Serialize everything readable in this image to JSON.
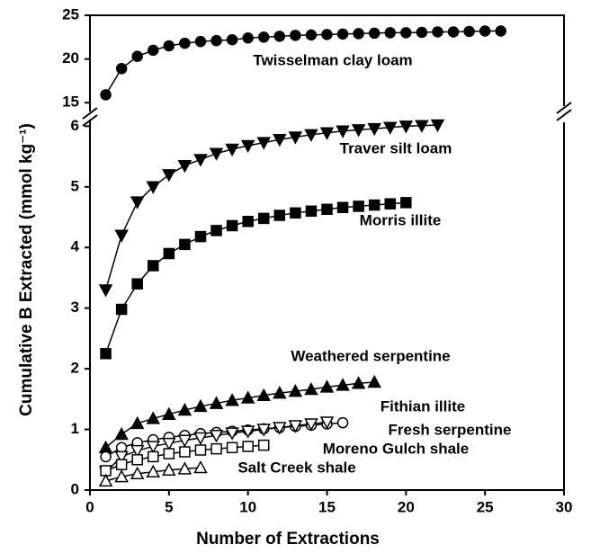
{
  "chart_data": [
    {
      "type": "line",
      "xlim": [
        0,
        30
      ],
      "ylim": [
        14.4,
        25
      ],
      "yticks": [
        15,
        20,
        25
      ],
      "series": [
        {
          "name": "Twisselman clay loam",
          "color": "#000000",
          "marker": "circle",
          "filled": true,
          "x": [
            1,
            2,
            3,
            4,
            5,
            6,
            7,
            8,
            9,
            10,
            11,
            12,
            13,
            14,
            15,
            16,
            17,
            18,
            19,
            20,
            21,
            22,
            23,
            24,
            25,
            26
          ],
          "values": [
            15.9,
            18.9,
            20.3,
            21.0,
            21.5,
            21.8,
            22.0,
            22.1,
            22.2,
            22.4,
            22.5,
            22.6,
            22.7,
            22.75,
            22.8,
            22.85,
            22.9,
            22.95,
            23.0,
            23.0,
            23.05,
            23.1,
            23.1,
            23.15,
            23.2,
            23.2
          ]
        }
      ]
    },
    {
      "type": "line",
      "xlim": [
        0,
        30
      ],
      "xticks": [
        0,
        5,
        10,
        15,
        20,
        25,
        30
      ],
      "ylim": [
        0,
        6.05
      ],
      "yticks": [
        0,
        1,
        2,
        3,
        4,
        5,
        6
      ],
      "x_label": "Number of Extractions",
      "y_label": "Cumulative B Extracted (mmol kg⁻¹)",
      "series": [
        {
          "name": "Traver silt loam",
          "color": "#000000",
          "marker": "triangle-down",
          "filled": true,
          "x": [
            1,
            2,
            3,
            4,
            5,
            6,
            7,
            8,
            9,
            10,
            11,
            12,
            13,
            14,
            15,
            16,
            17,
            18,
            19,
            20,
            21,
            22
          ],
          "values": [
            3.3,
            4.2,
            4.75,
            5.0,
            5.2,
            5.35,
            5.45,
            5.55,
            5.62,
            5.68,
            5.73,
            5.78,
            5.82,
            5.86,
            5.89,
            5.92,
            5.94,
            5.96,
            5.98,
            6.0,
            6.01,
            6.02
          ]
        },
        {
          "name": "Morris illite",
          "color": "#000000",
          "marker": "square",
          "filled": true,
          "x": [
            1,
            2,
            3,
            4,
            5,
            6,
            7,
            8,
            9,
            10,
            11,
            12,
            13,
            14,
            15,
            16,
            17,
            18,
            19,
            20
          ],
          "values": [
            2.25,
            2.98,
            3.4,
            3.7,
            3.9,
            4.05,
            4.18,
            4.28,
            4.36,
            4.43,
            4.48,
            4.53,
            4.57,
            4.6,
            4.63,
            4.66,
            4.68,
            4.7,
            4.72,
            4.74
          ]
        },
        {
          "name": "Weathered serpentine",
          "color": "#000000",
          "marker": "triangle-up",
          "filled": true,
          "x": [
            1,
            2,
            3,
            4,
            5,
            6,
            7,
            8,
            9,
            10,
            11,
            12,
            13,
            14,
            15,
            16,
            17,
            18
          ],
          "values": [
            0.7,
            0.92,
            1.1,
            1.18,
            1.25,
            1.32,
            1.38,
            1.43,
            1.48,
            1.52,
            1.56,
            1.6,
            1.63,
            1.66,
            1.7,
            1.73,
            1.76,
            1.78
          ]
        },
        {
          "name": "Fithian illite",
          "color": "#000000",
          "marker": "circle",
          "filled": false,
          "x": [
            1,
            2,
            3,
            4,
            5,
            6,
            7,
            8,
            9,
            10,
            11,
            12,
            13,
            14,
            15,
            16
          ],
          "values": [
            0.55,
            0.7,
            0.78,
            0.83,
            0.87,
            0.9,
            0.93,
            0.95,
            0.97,
            0.99,
            1.01,
            1.03,
            1.05,
            1.07,
            1.09,
            1.11
          ]
        },
        {
          "name": "Fresh serpentine",
          "color": "#000000",
          "marker": "triangle-down",
          "filled": false,
          "x": [
            1,
            2,
            3,
            4,
            5,
            6,
            7,
            8,
            9,
            10,
            11,
            12,
            13,
            14,
            15
          ],
          "values": [
            0.3,
            0.55,
            0.65,
            0.72,
            0.77,
            0.82,
            0.86,
            0.9,
            0.94,
            0.97,
            1.0,
            1.03,
            1.06,
            1.09,
            1.12
          ]
        },
        {
          "name": "Moreno Gulch shale",
          "color": "#000000",
          "marker": "square",
          "filled": false,
          "x": [
            1,
            2,
            3,
            4,
            5,
            6,
            7,
            8,
            9,
            10,
            11
          ],
          "values": [
            0.32,
            0.42,
            0.5,
            0.55,
            0.6,
            0.63,
            0.66,
            0.68,
            0.7,
            0.72,
            0.74
          ]
        },
        {
          "name": "Salt Creek shale",
          "color": "#000000",
          "marker": "triangle-up",
          "filled": false,
          "x": [
            1,
            2,
            3,
            4,
            5,
            6,
            7
          ],
          "values": [
            0.15,
            0.22,
            0.27,
            0.3,
            0.33,
            0.35,
            0.37
          ]
        }
      ]
    }
  ]
}
